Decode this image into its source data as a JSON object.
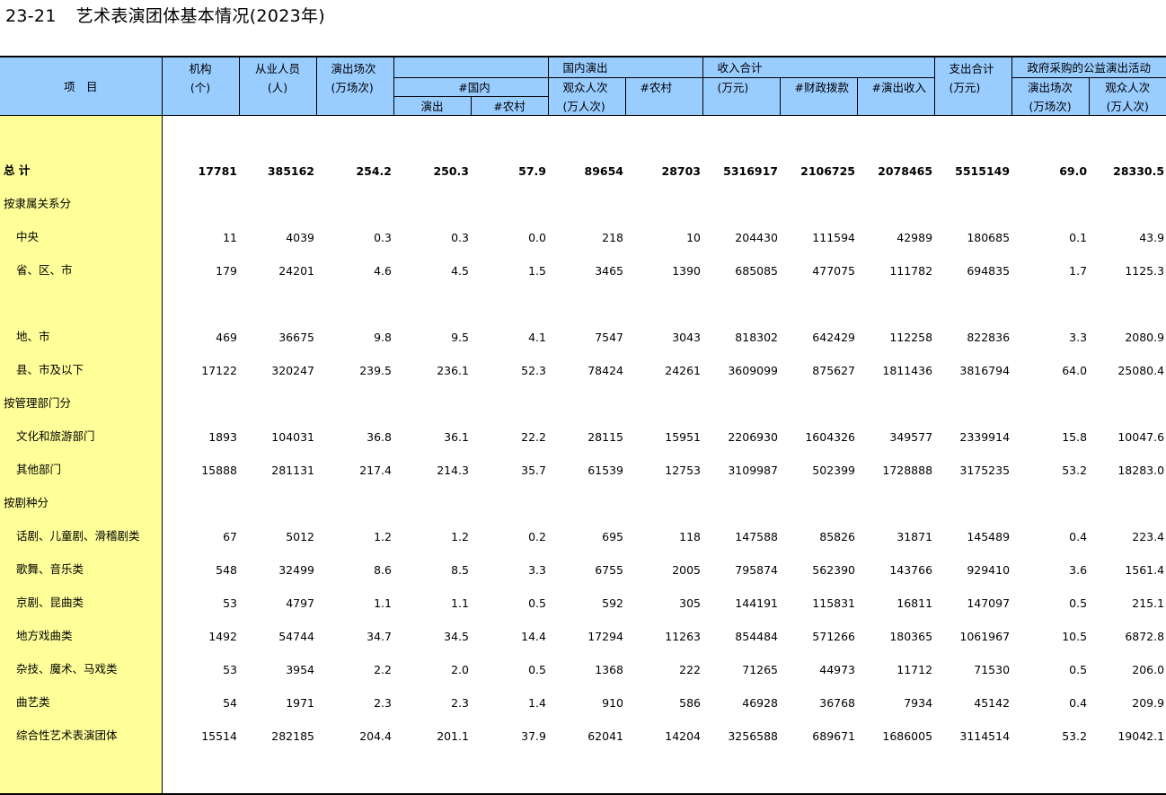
{
  "title": {
    "number": "23-21",
    "text": "艺术表演团体基本情况(2023年)"
  },
  "header": {
    "item": "项　目",
    "orgs": "机构",
    "orgs_unit": "(个)",
    "staff": "从业人员",
    "staff_unit": "(人)",
    "shows": "演出场次",
    "shows_unit": "(万场次)",
    "domestic": "#国内",
    "domestic2": "演出",
    "rural": "#农村",
    "dom_show": "国内演出",
    "audience": "观众人次",
    "audience_unit": "(万人次)",
    "dom_rural": "#农村",
    "income": "收入合计",
    "income_unit": "(万元)",
    "fiscal": "#财政拨款",
    "perf_income": "#演出收入",
    "expense": "支出合计",
    "expense_unit": "(万元)",
    "gov": "政府采购的公益演出活动",
    "gov_shows": "演出场次",
    "gov_shows_unit": "(万场次)",
    "gov_aud": "观众人次",
    "gov_aud_unit": "(万人次)"
  },
  "rows": [
    {
      "label": "总  计",
      "v": [
        "17781",
        "385162",
        "254.2",
        "250.3",
        "57.9",
        "89654",
        "28703",
        "5316917",
        "2106725",
        "2078465",
        "5515149",
        "69.0",
        "28330.5"
      ]
    },
    {
      "label": "按隶属关系分",
      "v": [
        "",
        "",
        "",
        "",
        "",
        "",
        "",
        "",
        "",
        "",
        "",
        "",
        ""
      ]
    },
    {
      "label": "中央",
      "v": [
        "11",
        "4039",
        "0.3",
        "0.3",
        "0.0",
        "218",
        "10",
        "204430",
        "111594",
        "42989",
        "180685",
        "0.1",
        "43.9"
      ]
    },
    {
      "label": "省、区、市",
      "v": [
        "179",
        "24201",
        "4.6",
        "4.5",
        "1.5",
        "3465",
        "1390",
        "685085",
        "477075",
        "111782",
        "694835",
        "1.7",
        "1125.3"
      ]
    },
    {
      "label": "地、市",
      "v": [
        "469",
        "36675",
        "9.8",
        "9.5",
        "4.1",
        "7547",
        "3043",
        "818302",
        "642429",
        "112258",
        "822836",
        "3.3",
        "2080.9"
      ]
    },
    {
      "label": "县、市及以下",
      "v": [
        "17122",
        "320247",
        "239.5",
        "236.1",
        "52.3",
        "78424",
        "24261",
        "3609099",
        "875627",
        "1811436",
        "3816794",
        "64.0",
        "25080.4"
      ]
    },
    {
      "label": "按管理部门分",
      "v": [
        "",
        "",
        "",
        "",
        "",
        "",
        "",
        "",
        "",
        "",
        "",
        "",
        ""
      ]
    },
    {
      "label": "文化和旅游部门",
      "v": [
        "1893",
        "104031",
        "36.8",
        "36.1",
        "22.2",
        "28115",
        "15951",
        "2206930",
        "1604326",
        "349577",
        "2339914",
        "15.8",
        "10047.6"
      ]
    },
    {
      "label": "其他部门",
      "v": [
        "15888",
        "281131",
        "217.4",
        "214.3",
        "35.7",
        "61539",
        "12753",
        "3109987",
        "502399",
        "1728888",
        "3175235",
        "53.2",
        "18283.0"
      ]
    },
    {
      "label": "按剧种分",
      "v": [
        "",
        "",
        "",
        "",
        "",
        "",
        "",
        "",
        "",
        "",
        "",
        "",
        ""
      ]
    },
    {
      "label": "话剧、儿童剧、滑稽剧类",
      "v": [
        "67",
        "5012",
        "1.2",
        "1.2",
        "0.2",
        "695",
        "118",
        "147588",
        "85826",
        "31871",
        "145489",
        "0.4",
        "223.4"
      ]
    },
    {
      "label": "歌舞、音乐类",
      "v": [
        "548",
        "32499",
        "8.6",
        "8.5",
        "3.3",
        "6755",
        "2005",
        "795874",
        "562390",
        "143766",
        "929410",
        "3.6",
        "1561.4"
      ]
    },
    {
      "label": "京剧、昆曲类",
      "v": [
        "53",
        "4797",
        "1.1",
        "1.1",
        "0.5",
        "592",
        "305",
        "144191",
        "115831",
        "16811",
        "147097",
        "0.5",
        "215.1"
      ]
    },
    {
      "label": "地方戏曲类",
      "v": [
        "1492",
        "54744",
        "34.7",
        "34.5",
        "14.4",
        "17294",
        "11263",
        "854484",
        "571266",
        "180365",
        "1061967",
        "10.5",
        "6872.8"
      ]
    },
    {
      "label": "杂技、魔术、马戏类",
      "v": [
        "53",
        "3954",
        "2.2",
        "2.0",
        "0.5",
        "1368",
        "222",
        "71265",
        "44973",
        "11712",
        "71530",
        "0.5",
        "206.0"
      ]
    },
    {
      "label": "曲艺类",
      "v": [
        "54",
        "1971",
        "2.3",
        "2.3",
        "1.4",
        "910",
        "586",
        "46928",
        "36768",
        "7934",
        "45142",
        "0.4",
        "209.9"
      ]
    },
    {
      "label": "综合性艺术表演团体",
      "v": [
        "15514",
        "282185",
        "204.4",
        "201.1",
        "37.9",
        "62041",
        "14204",
        "3256588",
        "689671",
        "1686005",
        "3114514",
        "53.2",
        "19042.1"
      ]
    }
  ]
}
